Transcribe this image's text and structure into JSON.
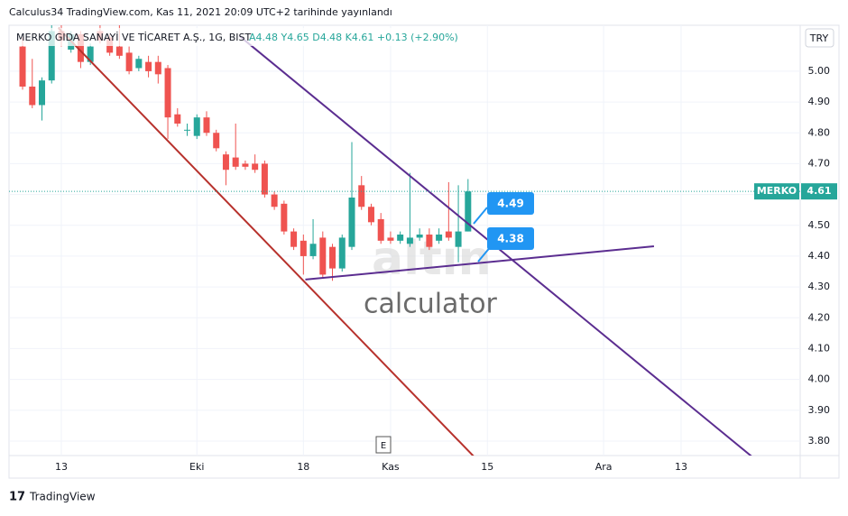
{
  "chart_data": {
    "type": "candlestick",
    "published": "Calculus34 TradingView.com, Kas 11, 2021 20:09 UTC+2 tarihinde yayınlandı",
    "title": "MERKO GIDA SANAYİ VE TİCARET A.Ş., 1G, BIST",
    "ohlc_header": "A4.48 Y4.65 D4.48 K4.61 +0.13 (+2.90%)",
    "currency": "TRY",
    "symbol": "MERKO",
    "up_color": "#26a69a",
    "down_color": "#ef5350",
    "xlim": [
      -1.4,
      80.3
    ],
    "ylim": [
      3.753,
      5.149
    ],
    "xticks": [
      {
        "value": 4,
        "label": "13"
      },
      {
        "value": 18,
        "label": "Eki"
      },
      {
        "value": 29,
        "label": "18"
      },
      {
        "value": 38,
        "label": "Kas"
      },
      {
        "value": 48,
        "label": "15"
      },
      {
        "value": 60,
        "label": "Ara"
      },
      {
        "value": 68,
        "label": "13"
      }
    ],
    "yticks": [
      {
        "value": 3.8,
        "label": "3.80"
      },
      {
        "value": 3.9,
        "label": "3.90"
      },
      {
        "value": 4.0,
        "label": "4.00"
      },
      {
        "value": 4.1,
        "label": "4.10"
      },
      {
        "value": 4.2,
        "label": "4.20"
      },
      {
        "value": 4.3,
        "label": "4.30"
      },
      {
        "value": 4.4,
        "label": "4.40"
      },
      {
        "value": 4.5,
        "label": "4.50"
      },
      {
        "value": 4.6,
        "label": "4.60"
      },
      {
        "value": 4.7,
        "label": "4.70"
      },
      {
        "value": 4.8,
        "label": "4.80"
      },
      {
        "value": 4.9,
        "label": "4.90"
      },
      {
        "value": 5.0,
        "label": "5.00"
      }
    ],
    "grid": true,
    "x": [
      0,
      1,
      2,
      3,
      4,
      5,
      6,
      7,
      8,
      9,
      10,
      11,
      12,
      13,
      14,
      15,
      16,
      17,
      18,
      19,
      20,
      21,
      22,
      23,
      24,
      25,
      26,
      27,
      28,
      29,
      30,
      31,
      32,
      33,
      34,
      35,
      36,
      37,
      38,
      39,
      40,
      41,
      42,
      43,
      44,
      45,
      46
    ],
    "open": [
      5.08,
      4.95,
      4.89,
      4.97,
      5.13,
      5.07,
      5.12,
      5.03,
      5.13,
      5.11,
      5.08,
      5.06,
      5.01,
      5.03,
      5.03,
      5.01,
      4.86,
      4.81,
      4.79,
      4.85,
      4.8,
      4.73,
      4.72,
      4.7,
      4.7,
      4.7,
      4.6,
      4.57,
      4.48,
      4.45,
      4.4,
      4.46,
      4.43,
      4.36,
      4.43,
      4.63,
      4.56,
      4.52,
      4.46,
      4.45,
      4.44,
      4.46,
      4.47,
      4.45,
      4.48,
      4.43,
      4.48
    ],
    "high": [
      5.11,
      5.04,
      4.98,
      5.15,
      5.15,
      5.13,
      5.13,
      5.09,
      5.15,
      5.12,
      5.15,
      5.08,
      5.05,
      5.05,
      5.05,
      5.02,
      4.88,
      4.83,
      4.86,
      4.87,
      4.81,
      4.74,
      4.83,
      4.71,
      4.73,
      4.71,
      4.61,
      4.58,
      4.49,
      4.47,
      4.52,
      4.48,
      4.44,
      4.47,
      4.77,
      4.66,
      4.57,
      4.54,
      4.48,
      4.48,
      4.67,
      4.49,
      4.49,
      4.49,
      4.64,
      4.63,
      4.65
    ],
    "low": [
      4.94,
      4.88,
      4.84,
      4.96,
      5.08,
      5.06,
      5.01,
      5.02,
      5.09,
      5.05,
      5.04,
      4.99,
      5.0,
      4.98,
      4.96,
      4.78,
      4.82,
      4.79,
      4.78,
      4.79,
      4.74,
      4.63,
      4.68,
      4.68,
      4.67,
      4.59,
      4.55,
      4.47,
      4.42,
      4.34,
      4.39,
      4.33,
      4.32,
      4.35,
      4.42,
      4.55,
      4.5,
      4.44,
      4.44,
      4.44,
      4.43,
      4.45,
      4.42,
      4.44,
      4.45,
      4.38,
      4.48
    ],
    "close": [
      4.95,
      4.89,
      4.97,
      5.13,
      5.1,
      5.12,
      5.03,
      5.08,
      5.1,
      5.06,
      5.05,
      5.0,
      5.04,
      5.0,
      4.99,
      4.85,
      4.83,
      4.81,
      4.85,
      4.8,
      4.75,
      4.68,
      4.69,
      4.69,
      4.68,
      4.6,
      4.56,
      4.48,
      4.43,
      4.4,
      4.44,
      4.34,
      4.36,
      4.46,
      4.59,
      4.56,
      4.51,
      4.45,
      4.45,
      4.47,
      4.46,
      4.47,
      4.43,
      4.47,
      4.46,
      4.48,
      4.61
    ],
    "last_price": {
      "value": 4.61,
      "label": "4.61"
    },
    "trendlines": [
      {
        "color": "#b7312c",
        "x": [
          3.7,
          46.6
        ],
        "y": [
          5.14,
          3.75
        ]
      },
      {
        "color": "#5b2d90",
        "x": [
          22.4,
          75.3
        ],
        "y": [
          5.114,
          3.75
        ]
      },
      {
        "color": "#5b2d90",
        "x": [
          29.2,
          65.2
        ],
        "y": [
          4.324,
          4.432
        ]
      }
    ],
    "callouts": [
      "4.49",
      "4.38"
    ],
    "watermark": [
      "altın",
      "calculator"
    ],
    "event_marker": "E",
    "footer": "TradingView"
  }
}
